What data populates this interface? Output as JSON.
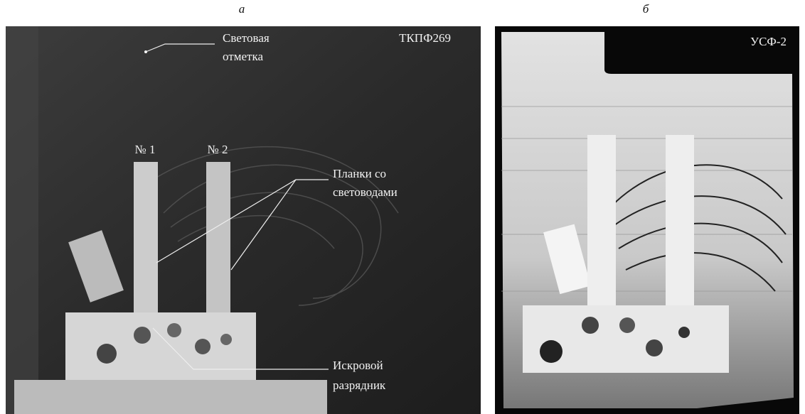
{
  "panels": [
    {
      "label": "а",
      "camera": "ТКПФ269",
      "light_mark": [
        "Световая",
        "отметка"
      ],
      "slat_labels": [
        "№ 1",
        "№ 2"
      ],
      "slats_caption": [
        "Планки со",
        "световодами"
      ],
      "spark_gap": [
        "Искровой",
        "разрядник"
      ]
    },
    {
      "label": "б",
      "camera": "УСФ-2"
    }
  ]
}
